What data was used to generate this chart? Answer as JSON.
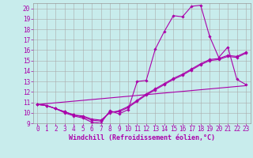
{
  "xlabel": "Windchill (Refroidissement éolien,°C)",
  "background_color": "#c8ecec",
  "line_color": "#aa00aa",
  "grid_color": "#aaaaaa",
  "xlim": [
    -0.5,
    23.5
  ],
  "ylim": [
    9,
    20.5
  ],
  "xticks": [
    0,
    1,
    2,
    3,
    4,
    5,
    6,
    7,
    8,
    9,
    10,
    11,
    12,
    13,
    14,
    15,
    16,
    17,
    18,
    19,
    20,
    21,
    22,
    23
  ],
  "yticks": [
    9,
    10,
    11,
    12,
    13,
    14,
    15,
    16,
    17,
    18,
    19,
    20
  ],
  "line1_x": [
    0,
    1,
    2,
    3,
    4,
    5,
    6,
    7,
    8,
    9,
    10,
    11,
    12,
    13,
    14,
    15,
    16,
    17,
    18,
    19,
    20,
    21,
    22,
    23
  ],
  "line1_y": [
    10.8,
    10.7,
    10.4,
    10.0,
    9.7,
    9.5,
    9.1,
    9.0,
    10.2,
    9.9,
    10.3,
    13.0,
    13.1,
    16.1,
    17.8,
    19.3,
    19.2,
    20.2,
    20.3,
    17.3,
    15.3,
    16.3,
    13.2,
    12.7
  ],
  "line2_x": [
    0,
    1,
    2,
    3,
    4,
    5,
    6,
    7,
    8,
    9,
    10,
    11,
    12,
    13,
    14,
    15,
    16,
    17,
    18,
    19,
    20,
    21,
    22,
    23
  ],
  "line2_y": [
    10.8,
    10.7,
    10.4,
    10.1,
    9.8,
    9.6,
    9.3,
    9.2,
    10.1,
    10.1,
    10.5,
    11.1,
    11.7,
    12.2,
    12.7,
    13.2,
    13.6,
    14.1,
    14.6,
    15.0,
    15.1,
    15.4,
    15.3,
    15.7
  ],
  "line3_x": [
    0,
    1,
    2,
    3,
    4,
    5,
    6,
    7,
    8,
    9,
    10,
    11,
    12,
    13,
    14,
    15,
    16,
    17,
    18,
    19,
    20,
    21,
    22,
    23
  ],
  "line3_y": [
    10.8,
    10.7,
    10.4,
    10.1,
    9.8,
    9.7,
    9.4,
    9.3,
    10.0,
    10.2,
    10.6,
    11.2,
    11.8,
    12.3,
    12.8,
    13.3,
    13.7,
    14.2,
    14.7,
    15.1,
    15.2,
    15.5,
    15.4,
    15.8
  ],
  "line4_x": [
    0,
    23
  ],
  "line4_y": [
    10.8,
    12.6
  ],
  "fontsize_label": 6,
  "fontsize_tick": 5.5
}
